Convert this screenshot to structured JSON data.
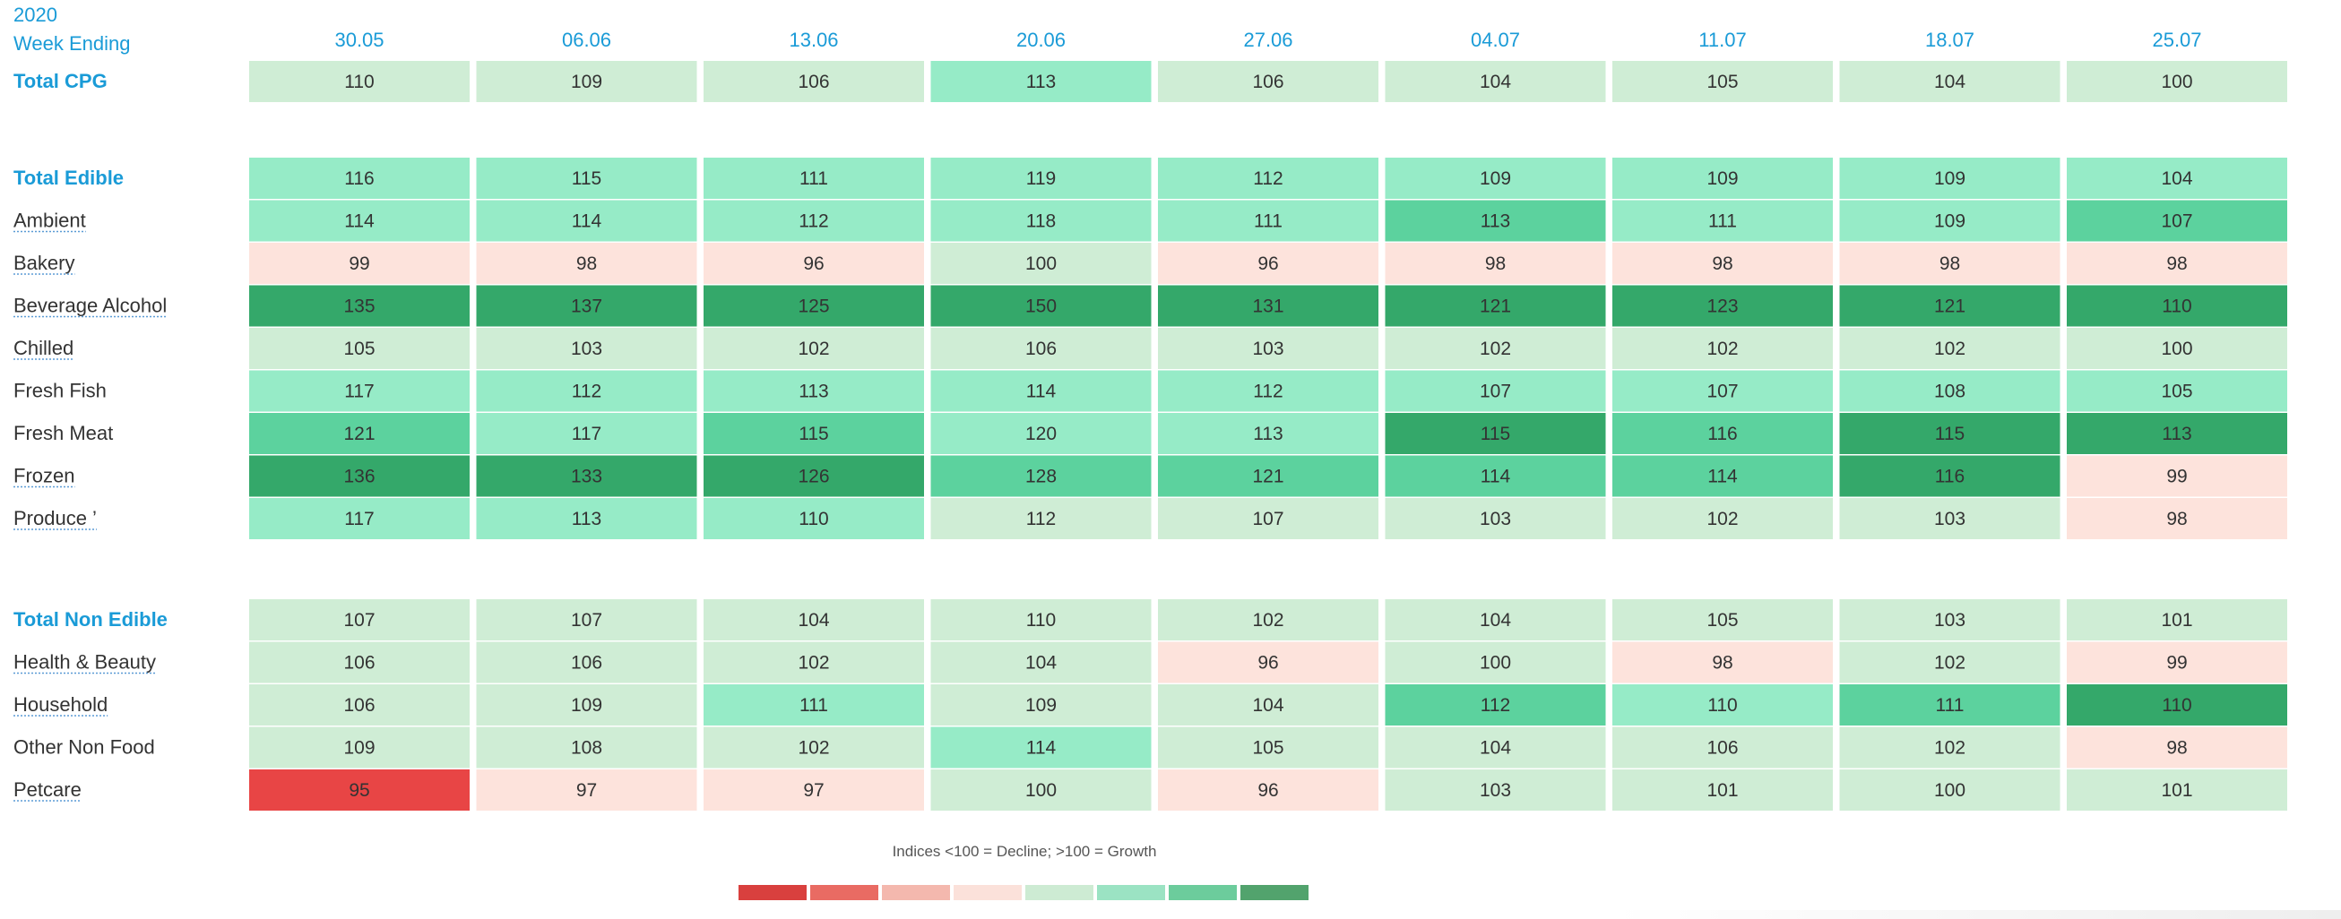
{
  "header": {
    "year": "2020",
    "week_ending_label": "Week Ending"
  },
  "legend": {
    "caption": "Indices <100 = Decline; >100 = Growth",
    "swatches": [
      "#d9403e",
      "#e96b63",
      "#f4b8ae",
      "#fbe1da",
      "#cdebd3",
      "#9be3c3",
      "#6ccc9c",
      "#52a36d"
    ]
  },
  "colors": {
    "palette": {
      "strong_decline": "#e84545",
      "decline": "#fde3dc",
      "flat": "#cfedd5",
      "growth": "#96ebc7",
      "strong_growth": "#5cd29e",
      "very_strong_growth": "#34a86a"
    }
  },
  "chart_data": {
    "type": "heatmap",
    "columns": [
      "30.05",
      "06.06",
      "13.06",
      "20.06",
      "27.06",
      "04.07",
      "11.07",
      "18.07",
      "25.07"
    ],
    "groups": [
      {
        "rows": [
          {
            "label": "Total CPG",
            "total": true,
            "underline": false,
            "values": [
              110,
              109,
              106,
              113,
              106,
              104,
              105,
              104,
              100
            ],
            "shades": [
              "flat",
              "flat",
              "flat",
              "growth",
              "flat",
              "flat",
              "flat",
              "flat",
              "flat"
            ]
          }
        ]
      },
      {
        "rows": [
          {
            "label": "Total Edible",
            "total": true,
            "underline": false,
            "values": [
              116,
              115,
              111,
              119,
              112,
              109,
              109,
              109,
              104
            ],
            "shades": [
              "growth",
              "growth",
              "growth",
              "growth",
              "growth",
              "growth",
              "growth",
              "growth",
              "growth"
            ]
          },
          {
            "label": "Ambient",
            "total": false,
            "underline": true,
            "values": [
              114,
              114,
              112,
              118,
              111,
              113,
              111,
              109,
              107
            ],
            "shades": [
              "growth",
              "growth",
              "growth",
              "growth",
              "growth",
              "strong_growth",
              "growth",
              "growth",
              "strong_growth"
            ]
          },
          {
            "label": "Bakery",
            "total": false,
            "underline": true,
            "values": [
              99,
              98,
              96,
              100,
              96,
              98,
              98,
              98,
              98
            ],
            "shades": [
              "decline",
              "decline",
              "decline",
              "flat",
              "decline",
              "decline",
              "decline",
              "decline",
              "decline"
            ]
          },
          {
            "label": "Beverage Alcohol",
            "total": false,
            "underline": true,
            "values": [
              135,
              137,
              125,
              150,
              131,
              121,
              123,
              121,
              110
            ],
            "shades": [
              "very_strong_growth",
              "very_strong_growth",
              "very_strong_growth",
              "very_strong_growth",
              "very_strong_growth",
              "very_strong_growth",
              "very_strong_growth",
              "very_strong_growth",
              "very_strong_growth"
            ]
          },
          {
            "label": "Chilled",
            "total": false,
            "underline": true,
            "values": [
              105,
              103,
              102,
              106,
              103,
              102,
              102,
              102,
              100
            ],
            "shades": [
              "flat",
              "flat",
              "flat",
              "flat",
              "flat",
              "flat",
              "flat",
              "flat",
              "flat"
            ]
          },
          {
            "label": "Fresh Fish",
            "total": false,
            "underline": false,
            "values": [
              117,
              112,
              113,
              114,
              112,
              107,
              107,
              108,
              105
            ],
            "shades": [
              "growth",
              "growth",
              "growth",
              "growth",
              "growth",
              "growth",
              "growth",
              "growth",
              "growth"
            ]
          },
          {
            "label": "Fresh Meat",
            "total": false,
            "underline": false,
            "values": [
              121,
              117,
              115,
              120,
              113,
              115,
              116,
              115,
              113
            ],
            "shades": [
              "strong_growth",
              "growth",
              "strong_growth",
              "growth",
              "growth",
              "very_strong_growth",
              "strong_growth",
              "very_strong_growth",
              "very_strong_growth"
            ]
          },
          {
            "label": "Frozen",
            "total": false,
            "underline": true,
            "values": [
              136,
              133,
              126,
              128,
              121,
              114,
              114,
              116,
              99
            ],
            "shades": [
              "very_strong_growth",
              "very_strong_growth",
              "very_strong_growth",
              "strong_growth",
              "strong_growth",
              "strong_growth",
              "strong_growth",
              "very_strong_growth",
              "decline"
            ]
          },
          {
            "label": "Produce ’",
            "total": false,
            "underline": true,
            "values": [
              117,
              113,
              110,
              112,
              107,
              103,
              102,
              103,
              98
            ],
            "shades": [
              "growth",
              "growth",
              "growth",
              "flat",
              "flat",
              "flat",
              "flat",
              "flat",
              "decline"
            ]
          }
        ]
      },
      {
        "rows": [
          {
            "label": "Total Non Edible",
            "total": true,
            "underline": false,
            "values": [
              107,
              107,
              104,
              110,
              102,
              104,
              105,
              103,
              101
            ],
            "shades": [
              "flat",
              "flat",
              "flat",
              "flat",
              "flat",
              "flat",
              "flat",
              "flat",
              "flat"
            ]
          },
          {
            "label": "Health & Beauty",
            "total": false,
            "underline": true,
            "values": [
              106,
              106,
              102,
              104,
              96,
              100,
              98,
              102,
              99
            ],
            "shades": [
              "flat",
              "flat",
              "flat",
              "flat",
              "decline",
              "flat",
              "decline",
              "flat",
              "decline"
            ]
          },
          {
            "label": "Household",
            "total": false,
            "underline": true,
            "values": [
              106,
              109,
              111,
              109,
              104,
              112,
              110,
              111,
              110
            ],
            "shades": [
              "flat",
              "flat",
              "growth",
              "flat",
              "flat",
              "strong_growth",
              "growth",
              "strong_growth",
              "very_strong_growth"
            ]
          },
          {
            "label": "Other Non Food",
            "total": false,
            "underline": false,
            "values": [
              109,
              108,
              102,
              114,
              105,
              104,
              106,
              102,
              98
            ],
            "shades": [
              "flat",
              "flat",
              "flat",
              "growth",
              "flat",
              "flat",
              "flat",
              "flat",
              "decline"
            ]
          },
          {
            "label": "Petcare",
            "total": false,
            "underline": true,
            "values": [
              95,
              97,
              97,
              100,
              96,
              103,
              101,
              100,
              101
            ],
            "shades": [
              "strong_decline",
              "decline",
              "decline",
              "flat",
              "decline",
              "flat",
              "flat",
              "flat",
              "flat"
            ]
          }
        ]
      }
    ]
  }
}
